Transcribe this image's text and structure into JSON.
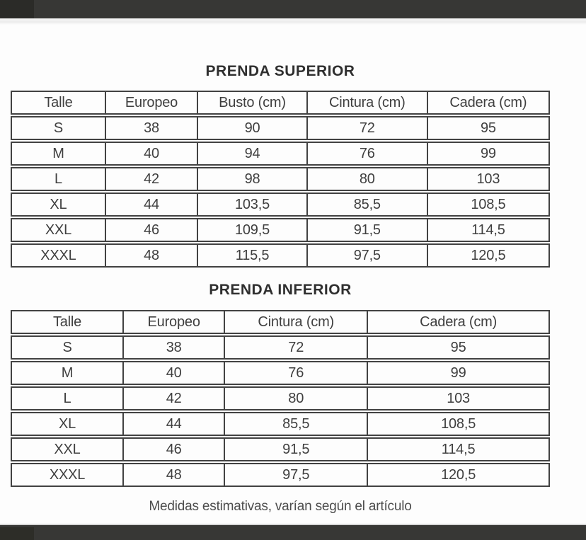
{
  "colors": {
    "bar_background": "#373735",
    "bar_corner": "#2b2b28",
    "table_border": "#424242",
    "table_text": "#3f3f3f",
    "title_text": "#2f2f2f",
    "note_text": "#4d4d4d",
    "page_background": "#fdfdfd"
  },
  "tables": [
    {
      "title": "PRENDA SUPERIOR",
      "headers": [
        "Talle",
        "Europeo",
        "Busto (cm)",
        "Cintura (cm)",
        "Cadera (cm)"
      ],
      "rows": [
        [
          "S",
          "38",
          "90",
          "72",
          "95"
        ],
        [
          "M",
          "40",
          "94",
          "76",
          "99"
        ],
        [
          "L",
          "42",
          "98",
          "80",
          "103"
        ],
        [
          "XL",
          "44",
          "103,5",
          "85,5",
          "108,5"
        ],
        [
          "XXL",
          "46",
          "109,5",
          "91,5",
          "114,5"
        ],
        [
          "XXXL",
          "48",
          "115,5",
          "97,5",
          "120,5"
        ]
      ]
    },
    {
      "title": "PRENDA INFERIOR",
      "headers": [
        "Talle",
        "Europeo",
        "Cintura (cm)",
        "Cadera (cm)"
      ],
      "rows": [
        [
          "S",
          "38",
          "72",
          "95"
        ],
        [
          "M",
          "40",
          "76",
          "99"
        ],
        [
          "L",
          "42",
          "80",
          "103"
        ],
        [
          "XL",
          "44",
          "85,5",
          "108,5"
        ],
        [
          "XXL",
          "46",
          "91,5",
          "114,5"
        ],
        [
          "XXXL",
          "48",
          "97,5",
          "120,5"
        ]
      ]
    }
  ],
  "footer_note": "Medidas estimativas, varían según el artículo"
}
